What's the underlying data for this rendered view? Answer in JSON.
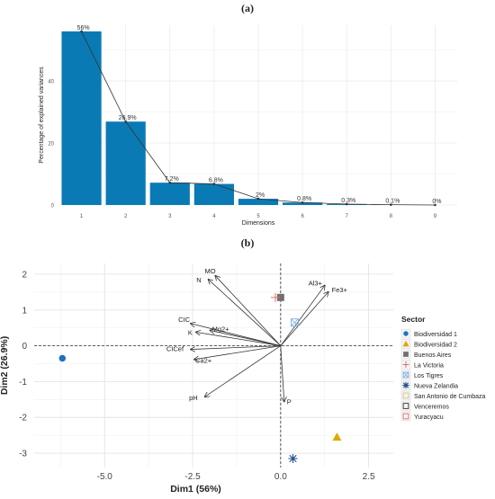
{
  "panels": {
    "a_label": "(a)",
    "b_label": "(b)"
  },
  "chart_data": [
    {
      "type": "bar",
      "panel": "(a)",
      "categories": [
        "1",
        "2",
        "3",
        "4",
        "5",
        "6",
        "7",
        "8",
        "9"
      ],
      "values": [
        56,
        26.9,
        7.2,
        6.8,
        2,
        0.8,
        0.3,
        0.1,
        0
      ],
      "data_labels": [
        "56%",
        "26.9%",
        "7.2%",
        "6.8%",
        "2%",
        "0.8%",
        "0.3%",
        "0.1%",
        "0%"
      ],
      "xlabel": "Dimensions",
      "ylabel": "Percentage of explained variances",
      "ylim": [
        0,
        58
      ],
      "yticks": [
        "0",
        "20",
        "40"
      ],
      "has_line_overlay": true,
      "grid": true,
      "colors": {
        "bar": "#0a7ab5",
        "line": "#333333"
      }
    },
    {
      "type": "scatter",
      "panel": "(b)",
      "xlabel": "Dim1 (56%)",
      "ylabel": "Dim2 (26.9%)",
      "xlim": [
        -7,
        3.2
      ],
      "ylim": [
        -3.4,
        2.3
      ],
      "xticks": [
        "-5.0",
        "-2.5",
        "0.0",
        "2.5"
      ],
      "yticks": [
        "-3",
        "-2",
        "-1",
        "0",
        "1",
        "2"
      ],
      "grid": true,
      "legend_position": "right",
      "legend_title": "Sector",
      "variables": [
        {
          "name": "MO",
          "x": -1.85,
          "y": 1.95
        },
        {
          "name": "N",
          "x": -2.05,
          "y": 1.85
        },
        {
          "name": "Al3+",
          "x": 1.25,
          "y": 1.68
        },
        {
          "name": "Fe3+",
          "x": 1.35,
          "y": 1.5
        },
        {
          "name": "CIC",
          "x": -2.55,
          "y": 0.62
        },
        {
          "name": "K",
          "x": -2.4,
          "y": 0.38
        },
        {
          "name": "Mg2+",
          "x": -2.0,
          "y": 0.43
        },
        {
          "name": "CICef",
          "x": -2.55,
          "y": -0.1
        },
        {
          "name": "Ca2+",
          "x": -2.45,
          "y": -0.38
        },
        {
          "name": "pH",
          "x": -2.15,
          "y": -1.42
        },
        {
          "name": "P",
          "x": 0.1,
          "y": -1.55
        }
      ],
      "series": [
        {
          "name": "Biodiversidad 1",
          "marker": "circle",
          "color": "#1f6fc4",
          "x": -6.2,
          "y": -0.35
        },
        {
          "name": "Biodiversidad 2",
          "marker": "triangle",
          "color": "#e0a800",
          "x": 1.6,
          "y": -2.55
        },
        {
          "name": "Buenos Aires",
          "marker": "square",
          "color": "#707070",
          "x": 0.0,
          "y": 1.35
        },
        {
          "name": "La Victoria",
          "marker": "plus",
          "color": "#e07070",
          "x": -0.15,
          "y": 1.35
        },
        {
          "name": "Los Tigres",
          "marker": "boxx",
          "color": "#7aaee0",
          "x": 0.4,
          "y": 0.65
        },
        {
          "name": "Nueva Zelandia",
          "marker": "asterisk",
          "color": "#1f4f8a",
          "x": 0.35,
          "y": -3.15
        },
        {
          "name": "San Antonio de Cumbaza",
          "marker": "box",
          "color": "#d8c58a"
        },
        {
          "name": "Venceremos",
          "marker": "box",
          "color": "#333333"
        },
        {
          "name": "Yuracyacu",
          "marker": "box",
          "color": "#e07070"
        }
      ]
    }
  ]
}
